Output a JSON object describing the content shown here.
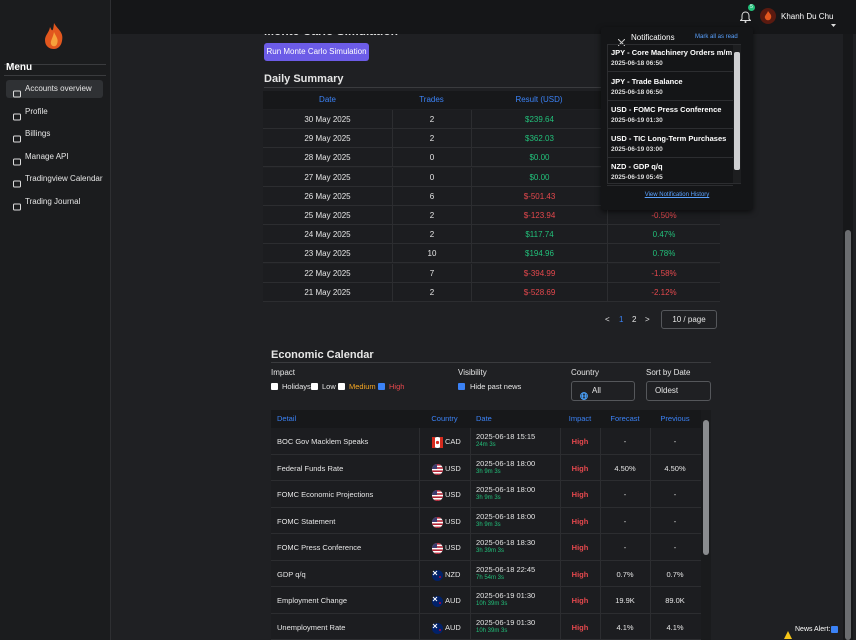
{
  "sidebar": {
    "menu_title": "Menu",
    "items": [
      "Accounts overview",
      "Profile",
      "Billings",
      "Manage API",
      "Tradingview Calendar",
      "Trading Journal"
    ]
  },
  "topbar": {
    "badge": "5",
    "user": "Khanh Du Chu"
  },
  "monte_carlo": {
    "title": "Monte Carlo Simulation",
    "button": "Run Monte Carlo Simulation"
  },
  "daily_summary": {
    "title": "Daily Summary",
    "headers": [
      "Date",
      "Trades",
      "Result (USD)"
    ],
    "rows": [
      [
        "30 May 2025",
        "2",
        "$239.64"
      ],
      [
        "29 May 2025",
        "2",
        "$362.03"
      ],
      [
        "28 May 2025",
        "0",
        "$0.00"
      ],
      [
        "27 May 2025",
        "0",
        "$0.00"
      ],
      [
        "26 May 2025",
        "6",
        "$-501.43"
      ],
      [
        "25 May 2025",
        "2",
        "$-123.94",
        "-0.50%"
      ],
      [
        "24 May 2025",
        "2",
        "$117.74",
        "0.47%"
      ],
      [
        "23 May 2025",
        "10",
        "$194.96",
        "0.78%"
      ],
      [
        "22 May 2025",
        "7",
        "$-394.99",
        "-1.58%"
      ],
      [
        "21 May 2025",
        "2",
        "$-528.69",
        "-2.12%"
      ]
    ],
    "pagination": {
      "prev": "<",
      "pages": [
        "1",
        "2"
      ],
      "next": ">",
      "page_size": "10 / page"
    }
  },
  "economic_calendar": {
    "title": "Economic Calendar",
    "filters": {
      "impact_label": "Impact",
      "impacts": [
        "Holidays",
        "Low",
        "Medium",
        "High"
      ],
      "visibility_label": "Visibility",
      "hide_past": "Hide past news",
      "country_label": "Country",
      "country": "All",
      "sort_label": "Sort by Date",
      "sort": "Oldest"
    },
    "headers": [
      "Detail",
      "Country",
      "Date",
      "Impact",
      "Forecast",
      "Previous"
    ],
    "rows": [
      [
        "BOC Gov Macklem Speaks",
        "CAD",
        "2025-06-18 15:15",
        "24m 3s",
        "High",
        "-",
        "-"
      ],
      [
        "Federal Funds Rate",
        "USD",
        "2025-06-18 18:00",
        "3h 9m 3s",
        "High",
        "4.50%",
        "4.50%"
      ],
      [
        "FOMC Economic Projections",
        "USD",
        "2025-06-18 18:00",
        "3h 9m 3s",
        "High",
        "-",
        "-"
      ],
      [
        "FOMC Statement",
        "USD",
        "2025-06-18 18:00",
        "3h 9m 3s",
        "High",
        "-",
        "-"
      ],
      [
        "FOMC Press Conference",
        "USD",
        "2025-06-18 18:30",
        "3h 39m 3s",
        "High",
        "-",
        "-"
      ],
      [
        "GDP q/q",
        "NZD",
        "2025-06-18 22:45",
        "7h 54m 3s",
        "High",
        "0.7%",
        "0.7%"
      ],
      [
        "Employment Change",
        "AUD",
        "2025-06-19 01:30",
        "10h 39m 3s",
        "High",
        "19.9K",
        "89.0K"
      ],
      [
        "Unemployment Rate",
        "AUD",
        "2025-06-19 01:30",
        "10h 39m 3s",
        "High",
        "4.1%",
        "4.1%"
      ]
    ]
  },
  "notifications": {
    "title": "Notifications",
    "mark_all": "Mark all as read",
    "items": [
      {
        "title": "JPY - Core Machinery Orders m/m",
        "date": "2025-06-18 06:50"
      },
      {
        "title": "JPY - Trade Balance",
        "date": "2025-06-18 06:50"
      },
      {
        "title": "USD - FOMC Press Conference",
        "date": "2025-06-19 01:30"
      },
      {
        "title": "USD - TIC Long-Term Purchases",
        "date": "2025-06-19 03:00"
      },
      {
        "title": "NZD - GDP q/q",
        "date": "2025-06-19 05:45"
      }
    ],
    "history": "View Notification History"
  },
  "news_alert": "News Alert:"
}
